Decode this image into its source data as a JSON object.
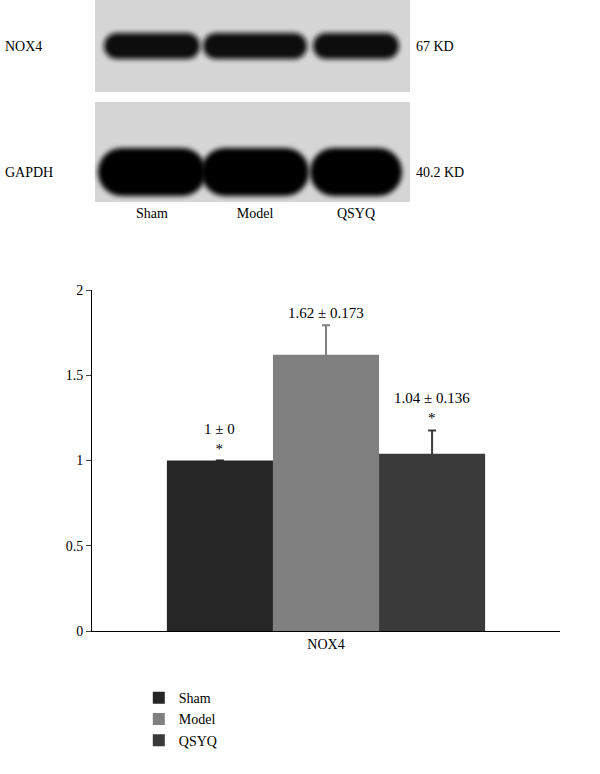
{
  "blot": {
    "rows": [
      {
        "label": "NOX4",
        "size": "67 KD"
      },
      {
        "label": "GAPDH",
        "size": "40.2 KD"
      }
    ],
    "lanes": [
      "Sham",
      "Model",
      "QSYQ"
    ]
  },
  "chart_data": {
    "type": "bar",
    "categories": [
      "NOX4"
    ],
    "series": [
      {
        "name": "Sham",
        "color": "#262626",
        "values": [
          1
        ],
        "errors": [
          0
        ],
        "value_labels": [
          "1 ± 0"
        ],
        "annotation": "*"
      },
      {
        "name": "Model",
        "color": "#808080",
        "values": [
          1.62
        ],
        "errors": [
          0.173
        ],
        "value_labels": [
          "1.62 ± 0.173"
        ]
      },
      {
        "name": "QSYQ",
        "color": "#3a3a3a",
        "values": [
          1.04
        ],
        "errors": [
          0.136
        ],
        "value_labels": [
          "1.04 ± 0.136"
        ],
        "annotation": "*"
      }
    ],
    "ylim": [
      0,
      2
    ],
    "yticks": [
      0,
      0.5,
      1,
      1.5,
      2
    ],
    "grid": false,
    "legend": "bottom left",
    "data_labels": true
  }
}
